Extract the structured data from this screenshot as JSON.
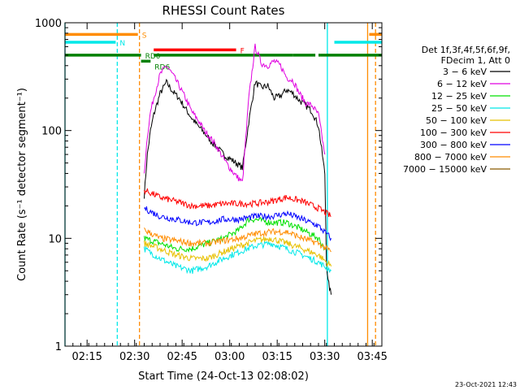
{
  "chart_data": {
    "type": "line",
    "title": "RHESSI Count Rates",
    "xlabel": "Start Time (24-Oct-13 02:08:02)",
    "ylabel": "Count Rate (s⁻¹ detector segment⁻¹)",
    "y_scale": "log",
    "ylim": [
      1,
      1000
    ],
    "xlim_minutes": [
      0,
      100
    ],
    "x_tick_labels": [
      "02:15",
      "02:30",
      "02:45",
      "03:00",
      "03:15",
      "03:30",
      "03:45"
    ],
    "x_tick_minutes": [
      6.97,
      21.97,
      36.97,
      51.97,
      66.97,
      81.97,
      96.97
    ],
    "y_tick_labels": [
      "1",
      "10",
      "100",
      "1000"
    ],
    "y_tick_values": [
      1,
      10,
      100,
      1000
    ],
    "legend": {
      "placement": "right",
      "header": [
        "Det 1f,3f,4f,5f,6f,9f,",
        "FDecim 1, Att 0"
      ],
      "entries": [
        {
          "label": "3 − 6 keV",
          "color": "#000000"
        },
        {
          "label": "6 − 12 keV",
          "color": "#e000e0"
        },
        {
          "label": "12 − 25 keV",
          "color": "#00e000"
        },
        {
          "label": "25 − 50 keV",
          "color": "#00e8e8"
        },
        {
          "label": "50 − 100 keV",
          "color": "#e8c000"
        },
        {
          "label": "100 − 300 keV",
          "color": "#ff0000"
        },
        {
          "label": "300 − 800 keV",
          "color": "#0000ff"
        },
        {
          "label": "800 − 7000 keV",
          "color": "#ff8c00"
        },
        {
          "label": "7000 − 15000 keV",
          "color": "#8b5a00"
        }
      ]
    },
    "series": [
      {
        "name": "3 − 6 keV",
        "color": "#000000",
        "x": [
          25,
          26,
          27,
          28,
          30,
          32,
          34,
          36,
          38,
          40,
          42,
          44,
          46,
          48,
          50,
          52,
          54,
          56,
          58,
          60,
          62,
          64,
          66,
          68,
          70,
          72,
          74,
          76,
          78,
          80,
          82,
          82.5,
          83,
          84
        ],
        "y": [
          25,
          60,
          100,
          140,
          220,
          280,
          230,
          200,
          160,
          130,
          110,
          95,
          80,
          70,
          60,
          55,
          50,
          45,
          120,
          280,
          250,
          260,
          200,
          210,
          240,
          220,
          190,
          170,
          150,
          110,
          40,
          6,
          4,
          3
        ]
      },
      {
        "name": "6 − 12 keV",
        "color": "#e000e0",
        "x": [
          25,
          26,
          27,
          28,
          30,
          32,
          34,
          36,
          38,
          40,
          42,
          44,
          46,
          48,
          50,
          52,
          54,
          56,
          58,
          60,
          62,
          64,
          66,
          68,
          70,
          72,
          74,
          76,
          78,
          80,
          82
        ],
        "y": [
          40,
          90,
          150,
          200,
          330,
          400,
          330,
          260,
          200,
          150,
          125,
          100,
          85,
          70,
          55,
          45,
          38,
          33,
          200,
          600,
          420,
          400,
          440,
          400,
          310,
          290,
          220,
          180,
          170,
          140,
          60
        ]
      },
      {
        "name": "12 − 25 keV",
        "color": "#00e000",
        "x": [
          25,
          30,
          35,
          40,
          45,
          50,
          55,
          58,
          60,
          65,
          70,
          75,
          80,
          82
        ],
        "y": [
          10,
          9,
          8,
          8,
          9,
          10,
          12,
          15,
          15,
          14,
          14,
          12,
          10,
          8
        ]
      },
      {
        "name": "25 − 50 keV",
        "color": "#00e8e8",
        "x": [
          25,
          30,
          35,
          40,
          45,
          50,
          55,
          60,
          65,
          70,
          75,
          80,
          84
        ],
        "y": [
          8,
          6.5,
          5.5,
          5,
          5.5,
          6.5,
          7.5,
          8.5,
          9,
          8,
          7,
          6,
          5
        ]
      },
      {
        "name": "50 − 100 keV",
        "color": "#e8c000",
        "x": [
          25,
          30,
          35,
          40,
          45,
          50,
          55,
          60,
          65,
          70,
          75,
          80,
          84
        ],
        "y": [
          9,
          8,
          7,
          6.5,
          6.5,
          7.5,
          8.5,
          9.5,
          10,
          9,
          8,
          7,
          5.5
        ]
      },
      {
        "name": "100 − 300 keV",
        "color": "#ff0000",
        "x": [
          25,
          30,
          35,
          40,
          45,
          50,
          55,
          60,
          65,
          70,
          75,
          80,
          84
        ],
        "y": [
          28,
          24,
          22,
          20,
          20,
          21,
          21,
          21,
          22,
          24,
          22,
          19,
          16
        ]
      },
      {
        "name": "300 − 800 keV",
        "color": "#0000ff",
        "x": [
          25,
          30,
          35,
          40,
          45,
          50,
          55,
          60,
          65,
          70,
          75,
          80,
          84
        ],
        "y": [
          19,
          16,
          15,
          14,
          14,
          15,
          15,
          16,
          16,
          17,
          15,
          13,
          10
        ]
      },
      {
        "name": "800 − 7000 keV",
        "color": "#ff8c00",
        "x": [
          25,
          30,
          35,
          40,
          45,
          50,
          55,
          60,
          65,
          70,
          75,
          80,
          84
        ],
        "y": [
          12,
          10,
          9.5,
          9,
          9,
          9.5,
          10,
          11,
          11.5,
          11.5,
          10,
          9,
          7.5
        ]
      }
    ],
    "annotations": [
      {
        "label": "S",
        "color": "#ff8c00",
        "y": 780,
        "segments": [
          [
            0,
            23
          ],
          [
            96,
            100
          ]
        ]
      },
      {
        "label": "N",
        "color": "#00e8e8",
        "y": 660,
        "segments": [
          [
            0,
            16
          ],
          [
            85,
            100
          ]
        ]
      },
      {
        "label": "F",
        "color": "#ff0000",
        "y": 560,
        "segments": [
          [
            28,
            54
          ]
        ]
      },
      {
        "label": "RD6",
        "color": "#008000",
        "y": 440,
        "segments": [
          [
            24,
            27
          ]
        ]
      },
      {
        "label": "RD0",
        "color": "#008000",
        "y": 500,
        "segments": [
          [
            0,
            24
          ],
          [
            28,
            72
          ],
          [
            72,
            79
          ],
          [
            80,
            100
          ]
        ]
      }
    ],
    "vertical_lines": [
      {
        "minute": 0,
        "color": "#00e8e8",
        "style": "solid"
      },
      {
        "minute": 16.5,
        "color": "#00e8e8",
        "style": "dashed"
      },
      {
        "minute": 23.5,
        "color": "#ff8c00",
        "style": "dashed"
      },
      {
        "minute": 82.8,
        "color": "#00e8e8",
        "style": "solid"
      },
      {
        "minute": 95.5,
        "color": "#ff8c00",
        "style": "solid"
      },
      {
        "minute": 98.0,
        "color": "#ff8c00",
        "style": "dashed"
      }
    ]
  },
  "footer_timestamp": "23-Oct-2021 12:43"
}
